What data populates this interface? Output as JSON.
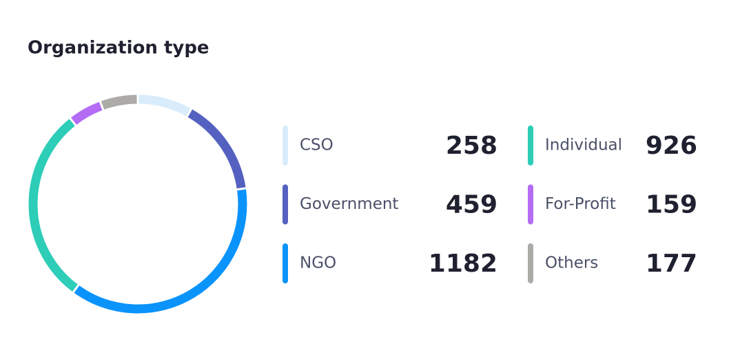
{
  "chart_data": {
    "type": "pie",
    "donut": true,
    "title": "Organization type",
    "categories": [
      "CSO",
      "Government",
      "NGO",
      "Individual",
      "For-Profit",
      "Others"
    ],
    "values": [
      258,
      459,
      1182,
      926,
      159,
      177
    ],
    "colors": [
      "#d9ecfb",
      "#5561c0",
      "#0a93fb",
      "#2dcdb8",
      "#b56cf5",
      "#acaba8"
    ]
  }
}
